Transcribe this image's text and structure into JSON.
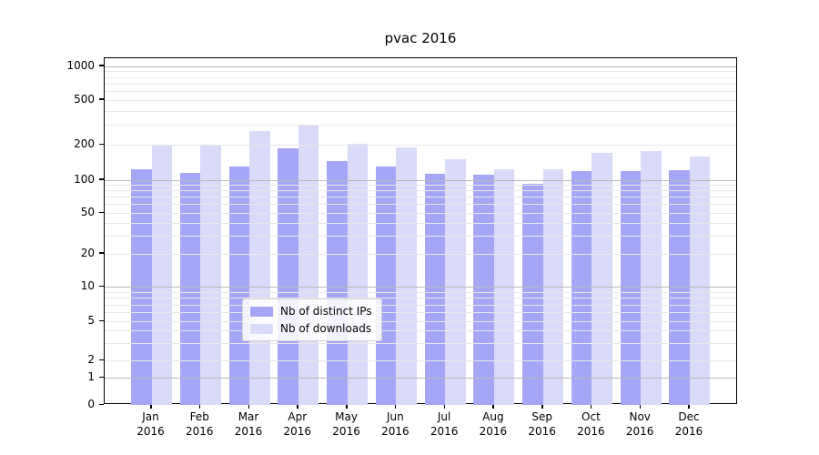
{
  "title": "pvac 2016",
  "chart_data": {
    "type": "bar",
    "title": "pvac 2016",
    "categories": [
      "Jan\n2016",
      "Feb\n2016",
      "Mar\n2016",
      "Apr\n2016",
      "May\n2016",
      "Jun\n2016",
      "Jul\n2016",
      "Aug\n2016",
      "Sep\n2016",
      "Oct\n2016",
      "Nov\n2016",
      "Dec\n2016"
    ],
    "series": [
      {
        "name": "Nb of distinct IPs",
        "color": "#a6a6f7",
        "values": [
          124,
          115,
          131,
          188,
          145,
          131,
          113,
          111,
          92,
          118,
          118,
          120
        ]
      },
      {
        "name": "Nb of downloads",
        "color": "#dadaf9",
        "values": [
          202,
          202,
          264,
          296,
          205,
          190,
          150,
          124,
          124,
          170,
          176,
          158
        ]
      }
    ],
    "yscale": "symlog",
    "ytick_values": [
      0,
      1,
      2,
      5,
      10,
      20,
      50,
      100,
      200,
      500,
      1000
    ],
    "ytick_labels": [
      "0",
      "1",
      "2",
      "5",
      "10",
      "20",
      "50",
      "100",
      "200",
      "500",
      "1000"
    ],
    "ylim": [
      0,
      1180
    ],
    "grid": "on",
    "grid_major_color": "#b9b9b9",
    "grid_minor_color": "#e8e8e8",
    "legend_position": "lower center",
    "legend_entries": [
      "Nb of distinct IPs",
      "Nb of downloads"
    ]
  }
}
